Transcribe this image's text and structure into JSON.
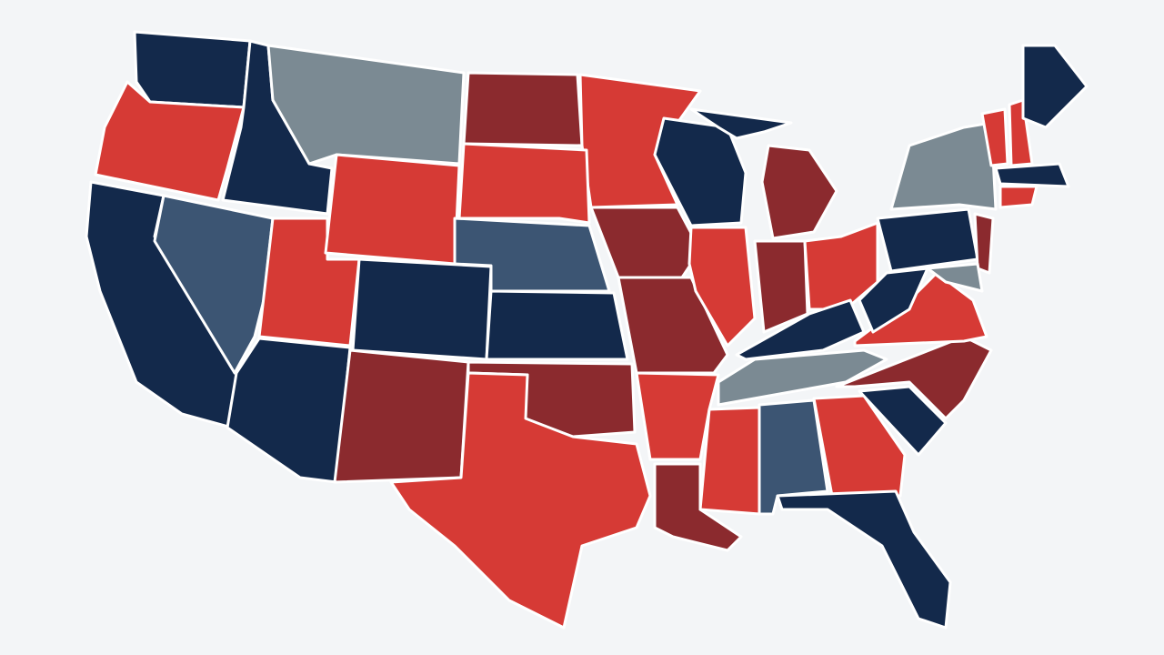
{
  "map": {
    "background": "#f3f5f7",
    "border": "#ffffff",
    "palette": [
      "#13294b",
      "#d63a35",
      "#8b2a2e",
      "#7b8a93",
      "#3c5573"
    ]
  }
}
